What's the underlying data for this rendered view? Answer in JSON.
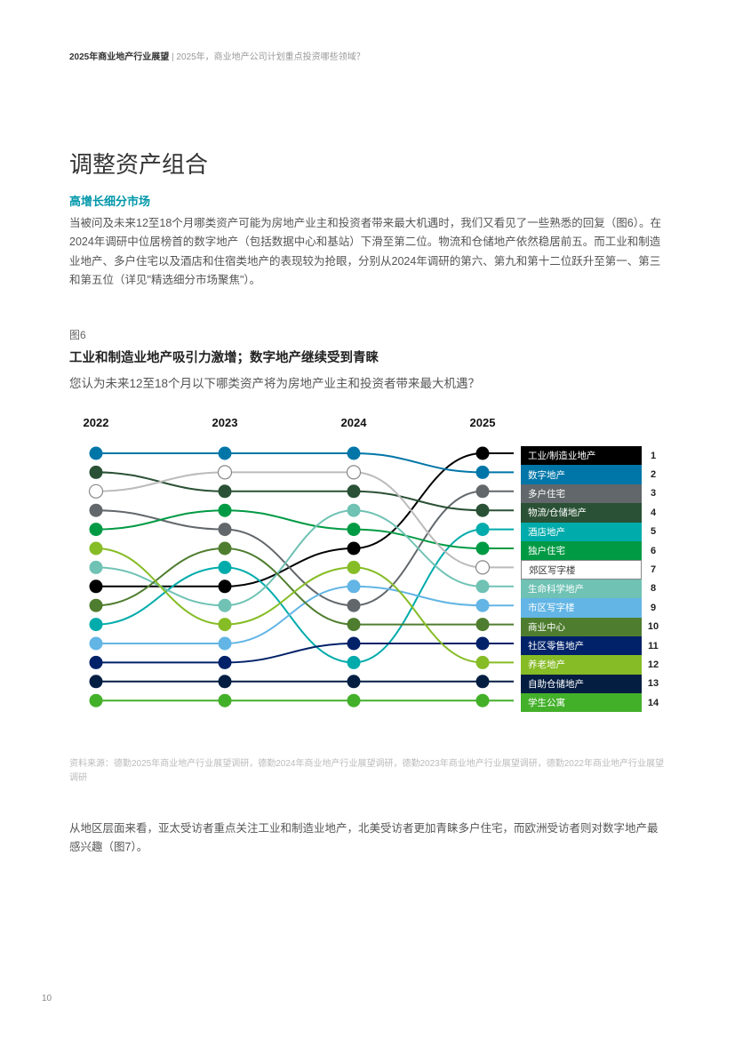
{
  "header": {
    "bold": "2025年商业地产行业展望",
    "sep": " | ",
    "rest": "2025年，商业地产公司计划重点投资哪些领域？"
  },
  "title": "调整资产组合",
  "subtitle": "高增长细分市场",
  "body1": "当被问及未来12至18个月哪类资产可能为房地产业主和投资者带来最大机遇时，我们又看见了一些熟悉的回复（图6）。在2024年调研中位居榜首的数字地产（包括数据中心和基站）下滑至第二位。物流和仓储地产依然稳居前五。而工业和制造业地产、多户住宅以及酒店和住宿类地产的表现较为抢眼，分别从2024年调研的第六、第九和第十二位跃升至第一、第三和第五位（详见\"精选细分市场聚焦\"）。",
  "figLabel": "图6",
  "figTitle": "工业和制造业地产吸引力激增；数字地产继续受到青睐",
  "figSubtitle": "您认为未来12至18个月以下哪类资产将为房地产业主和投资者带来最大机遇？",
  "chart": {
    "years": [
      "2022",
      "2023",
      "2024",
      "2025"
    ],
    "xPositions": [
      30,
      175,
      320,
      465
    ],
    "yTop": 42,
    "rowH": 21.4,
    "nRows": 14,
    "dotR": 7.5,
    "lineW": 2,
    "series": [
      {
        "label": "工业/制造业地产",
        "color": "#000000",
        "text": "#ffffff",
        "ranks": [
          8,
          8,
          6,
          1
        ]
      },
      {
        "label": "数字地产",
        "color": "#0076a8",
        "text": "#ffffff",
        "ranks": [
          1,
          1,
          1,
          2
        ]
      },
      {
        "label": "多户住宅",
        "color": "#62676b",
        "text": "#ffffff",
        "ranks": [
          4,
          5,
          9,
          3
        ]
      },
      {
        "label": "物流/仓储地产",
        "color": "#2a5135",
        "text": "#ffffff",
        "ranks": [
          2,
          3,
          3,
          4
        ]
      },
      {
        "label": "酒店地产",
        "color": "#00abab",
        "text": "#ffffff",
        "ranks": [
          10,
          7,
          12,
          5
        ]
      },
      {
        "label": "独户住宅",
        "color": "#009a44",
        "text": "#ffffff",
        "ranks": [
          5,
          4,
          5,
          6
        ]
      },
      {
        "label": "郊区写字楼",
        "color": "#ffffff",
        "text": "#333333",
        "ranks": [
          3,
          2,
          2,
          7
        ],
        "light": true
      },
      {
        "label": "生命科学地产",
        "color": "#6fc2b4",
        "text": "#ffffff",
        "ranks": [
          7,
          9,
          4,
          8
        ]
      },
      {
        "label": "市区写字楼",
        "color": "#62b5e5",
        "text": "#ffffff",
        "ranks": [
          11,
          11,
          8,
          9
        ]
      },
      {
        "label": "商业中心",
        "color": "#4f7d2f",
        "text": "#ffffff",
        "ranks": [
          9,
          6,
          10,
          10
        ]
      },
      {
        "label": "社区零售地产",
        "color": "#012169",
        "text": "#ffffff",
        "ranks": [
          12,
          12,
          11,
          11
        ]
      },
      {
        "label": "养老地产",
        "color": "#86bc25",
        "text": "#ffffff",
        "ranks": [
          6,
          10,
          7,
          12
        ]
      },
      {
        "label": "自助仓储地产",
        "color": "#041e42",
        "text": "#ffffff",
        "ranks": [
          13,
          13,
          13,
          13
        ]
      },
      {
        "label": "学生公寓",
        "color": "#43b02a",
        "text": "#ffffff",
        "ranks": [
          14,
          14,
          14,
          14
        ]
      }
    ],
    "legendRankLabels": [
      "1",
      "2",
      "3",
      "4",
      "5",
      "6",
      "7",
      "8",
      "9",
      "10",
      "11",
      "12",
      "13",
      "14"
    ]
  },
  "source": "资料来源：德勤2025年商业地产行业展望调研，德勤2024年商业地产行业展望调研，德勤2023年商业地产行业展望调研，德勤2022年商业地产行业展望调研",
  "body2": "从地区层面来看，亚太受访者重点关注工业和制造业地产，北美受访者更加青睐多户住宅，而欧洲受访者则对数字地产最感兴趣（图7）。",
  "pageNum": "10"
}
